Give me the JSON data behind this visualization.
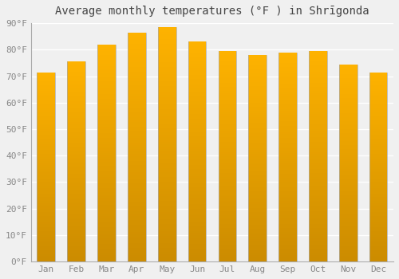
{
  "title": "Average monthly temperatures (°F ) in Shrīgonda",
  "months": [
    "Jan",
    "Feb",
    "Mar",
    "Apr",
    "May",
    "Jun",
    "Jul",
    "Aug",
    "Sep",
    "Oct",
    "Nov",
    "Dec"
  ],
  "values": [
    71.5,
    75.5,
    82.0,
    86.5,
    88.5,
    83.0,
    79.5,
    78.0,
    79.0,
    79.5,
    74.5,
    71.5
  ],
  "bar_color_top": "#FFB300",
  "bar_color_bottom": "#FF8C00",
  "bar_edge_color": "#999999",
  "background_color": "#f0f0f0",
  "plot_bg_color": "#f0f0f0",
  "grid_color": "#ffffff",
  "ylim": [
    0,
    90
  ],
  "yticks": [
    0,
    10,
    20,
    30,
    40,
    50,
    60,
    70,
    80,
    90
  ],
  "ytick_labels": [
    "0°F",
    "10°F",
    "20°F",
    "30°F",
    "40°F",
    "50°F",
    "60°F",
    "70°F",
    "80°F",
    "90°F"
  ],
  "title_fontsize": 10,
  "tick_fontsize": 8,
  "bar_width": 0.6,
  "tick_color": "#888888"
}
